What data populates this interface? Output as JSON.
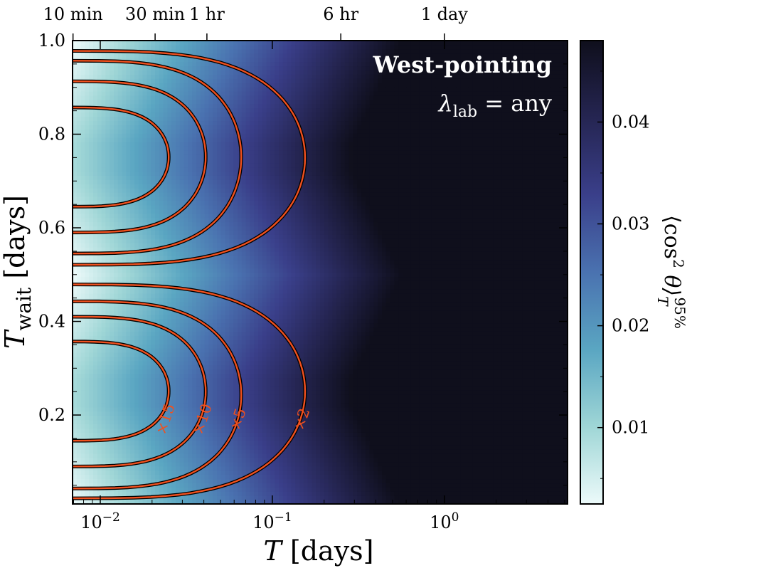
{
  "chart_data": {
    "type": "heatmap",
    "title": "West-pointing",
    "subtitle": {
      "prefix": "λ",
      "subscript": "lab",
      "suffix": " = any"
    },
    "xlabel": {
      "italic": "T",
      "rest": " [days]"
    },
    "ylabel": {
      "italic": "T",
      "subscript": "wait",
      "rest": " [days]"
    },
    "x_scale": "log",
    "xlim": [
      0.0069,
      5.2
    ],
    "ylim": [
      0.01,
      1.0
    ],
    "x_ticks": [
      {
        "value": 0.01,
        "base": "10",
        "exp": "−2"
      },
      {
        "value": 0.1,
        "base": "10",
        "exp": "−1"
      },
      {
        "value": 1.0,
        "base": "10",
        "exp": "0"
      }
    ],
    "y_ticks": [
      {
        "value": 0.2,
        "label": "0.2"
      },
      {
        "value": 0.4,
        "label": "0.4"
      },
      {
        "value": 0.6,
        "label": "0.6"
      },
      {
        "value": 0.8,
        "label": "0.8"
      },
      {
        "value": 1.0,
        "label": "1.0"
      }
    ],
    "top_axis_ticks": [
      {
        "value_days": 0.006944,
        "label": "10 min"
      },
      {
        "value_days": 0.020833,
        "label": "30 min"
      },
      {
        "value_days": 0.041667,
        "label": "1 hr"
      },
      {
        "value_days": 0.25,
        "label": "6 hr"
      },
      {
        "value_days": 1.0,
        "label": "1 day"
      }
    ],
    "colorbar": {
      "label": "⟨cos²θ⟩_T^95%",
      "label_parts": {
        "main": "⟨cos",
        "sup1": "2",
        "theta": " θ⟩",
        "sub": "T",
        "sup2": "95%"
      },
      "range": [
        0.0025,
        0.048
      ],
      "ticks": [
        {
          "value": 0.01,
          "label": "0.01"
        },
        {
          "value": 0.02,
          "label": "0.02"
        },
        {
          "value": 0.03,
          "label": "0.03"
        },
        {
          "value": 0.04,
          "label": "0.04"
        }
      ],
      "colors": [
        "#ecfafa",
        "#9fd6d6",
        "#5aa6c2",
        "#4a72b0",
        "#3a3f8a",
        "#252552",
        "#0f0f1c"
      ]
    },
    "contour_color": "#f0501e",
    "contours": [
      {
        "label": "×15",
        "t_max": 0.025,
        "upper": {
          "y_top": 0.857,
          "y_bot": 0.645
        },
        "lower": {
          "y_top": 0.357,
          "y_bot": 0.145
        }
      },
      {
        "label": "×10",
        "t_max": 0.041,
        "upper": {
          "y_top": 0.913,
          "y_bot": 0.59
        },
        "lower": {
          "y_top": 0.41,
          "y_bot": 0.09
        }
      },
      {
        "label": "×5",
        "t_max": 0.066,
        "upper": {
          "y_top": 0.957,
          "y_bot": 0.545
        },
        "lower": {
          "y_top": 0.443,
          "y_bot": 0.043
        }
      },
      {
        "label": "×2",
        "t_max": 0.155,
        "upper": {
          "y_top": 0.978,
          "y_bot": 0.521
        },
        "lower": {
          "y_top": 0.479,
          "y_bot": 0.022
        }
      }
    ]
  }
}
